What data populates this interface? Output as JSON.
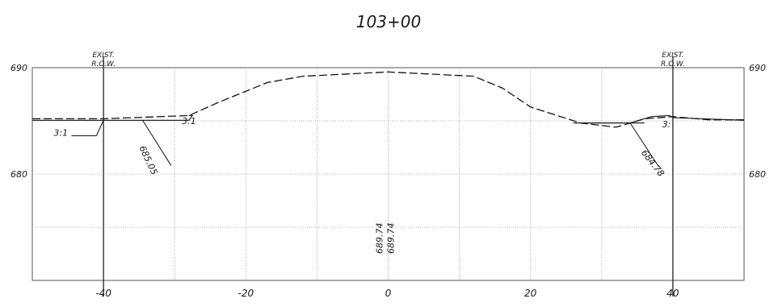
{
  "chart_data": {
    "type": "line",
    "title": "103+00",
    "xlim": [
      -50,
      50
    ],
    "ylim": [
      670,
      690
    ],
    "x_ticks": [
      -40,
      -20,
      0,
      20,
      40
    ],
    "x_tick_labels": [
      "-40",
      "-20",
      "0",
      "20",
      "40"
    ],
    "y_ticks": [
      680,
      690
    ],
    "y_tick_labels": [
      "680",
      "690"
    ],
    "grid": true,
    "series": [
      {
        "style": "dashed",
        "points": [
          [
            -50,
            685.2
          ],
          [
            -40,
            685.2
          ],
          [
            -28,
            685.5
          ],
          [
            -24,
            686.7
          ],
          [
            -17,
            688.6
          ],
          [
            -12,
            689.2
          ],
          [
            0,
            689.6
          ],
          [
            12,
            689.2
          ],
          [
            16,
            688.1
          ],
          [
            20,
            686.3
          ],
          [
            27,
            684.8
          ],
          [
            32,
            684.4
          ],
          [
            36,
            685.2
          ],
          [
            40,
            685.4
          ],
          [
            45,
            685.1
          ],
          [
            50,
            685.1
          ]
        ]
      },
      {
        "style": "solid",
        "points": [
          [
            -50,
            685.05
          ],
          [
            -40,
            685.05
          ],
          [
            -28,
            685.05
          ],
          [
            -27.5,
            685.5
          ],
          [
            -28,
            685.5
          ]
        ]
      },
      {
        "style": "solid",
        "points": [
          [
            26,
            684.8
          ],
          [
            34,
            684.8
          ],
          [
            37,
            685.4
          ],
          [
            39.5,
            685.5
          ],
          [
            40,
            685.3
          ],
          [
            50,
            685.05
          ]
        ]
      },
      {
        "style": "solid",
        "points": [
          [
            27,
            684.8
          ],
          [
            36,
            684.8
          ]
        ]
      }
    ],
    "vertical_markers": [
      {
        "x": -40,
        "label_line1": "EXIST.",
        "label_line2": "R.O.W."
      },
      {
        "x": 40,
        "label_line1": "EXIST.",
        "label_line2": "R.O.W."
      }
    ],
    "annotations": [
      {
        "text": "3:1",
        "x": -47,
        "y": 683.6
      },
      {
        "text": "685.05",
        "x": -35,
        "y": 682.5,
        "rotate": 65
      },
      {
        "text": "3:1",
        "x": -29,
        "y": 684.7
      },
      {
        "text": "684.78",
        "x": 35.5,
        "y": 682.0,
        "rotate": 52
      },
      {
        "text": "3:",
        "x": 38.5,
        "y": 684.4
      },
      {
        "text": "689.74",
        "x": -0.8,
        "y": 672.5,
        "rotate": -90
      },
      {
        "text": "689.74",
        "x": 0.8,
        "y": 672.5,
        "rotate": -90
      }
    ]
  }
}
